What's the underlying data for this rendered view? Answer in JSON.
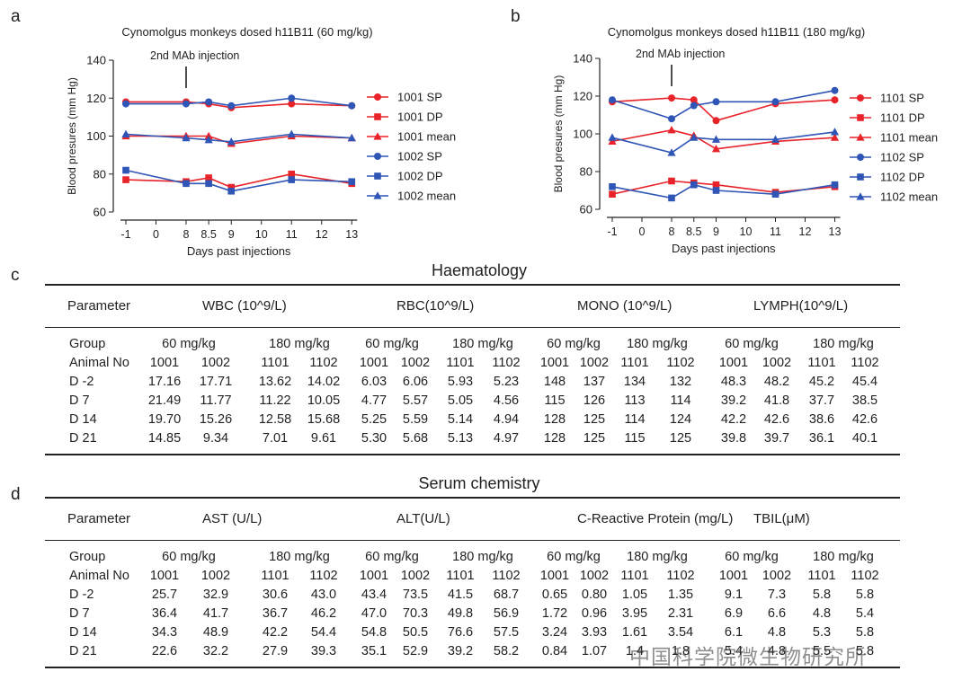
{
  "panels": {
    "a": "a",
    "b": "b",
    "c": "c",
    "d": "d"
  },
  "chart_data": [
    {
      "type": "line",
      "title": "Cynomolgus monkeys dosed h11B11 (60 mg/kg)",
      "xlabel": "Days past injections",
      "ylabel": "Blood presures (mm Hg)",
      "ylim": [
        60,
        140
      ],
      "yticks": [
        "60",
        "80",
        "100",
        "120",
        "140"
      ],
      "xticks": [
        "-1",
        "0",
        "8",
        "8.5",
        "9",
        "10",
        "11",
        "12",
        "13"
      ],
      "xtick_values": [
        -1,
        0,
        8,
        8.5,
        9,
        10,
        11,
        12,
        13
      ],
      "annotation": "2nd MAb injection",
      "legend_position": "right",
      "x": [
        -1,
        8,
        8.5,
        9,
        11,
        13
      ],
      "series": [
        {
          "name": "1001 SP",
          "color": "#e8232a",
          "marker": "circle",
          "values": [
            118,
            118,
            117,
            115,
            117,
            116
          ]
        },
        {
          "name": "1001 DP",
          "color": "#e8232a",
          "marker": "square",
          "values": [
            77,
            76,
            78,
            73,
            80,
            75
          ]
        },
        {
          "name": "1001 mean",
          "color": "#e8232a",
          "marker": "triangle",
          "values": [
            100,
            100,
            100,
            96,
            100,
            99
          ]
        },
        {
          "name": "1002 SP",
          "color": "#2f55b6",
          "marker": "circle",
          "values": [
            117,
            117,
            118,
            116,
            120,
            116
          ]
        },
        {
          "name": "1002 DP",
          "color": "#2f55b6",
          "marker": "square",
          "values": [
            82,
            75,
            75,
            71,
            77,
            76
          ]
        },
        {
          "name": "1002 mean",
          "color": "#2f55b6",
          "marker": "triangle",
          "values": [
            101,
            99,
            98,
            97,
            101,
            99
          ]
        }
      ]
    },
    {
      "type": "line",
      "title": "Cynomolgus monkeys dosed h11B11 (180 mg/kg)",
      "xlabel": "Days past injections",
      "ylabel": "Blood presures (mm Hg)",
      "ylim": [
        60,
        140
      ],
      "yticks": [
        "60",
        "80",
        "100",
        "120",
        "140"
      ],
      "xticks": [
        "-1",
        "0",
        "8",
        "8.5",
        "9",
        "10",
        "11",
        "12",
        "13"
      ],
      "xtick_values": [
        -1,
        0,
        8,
        8.5,
        9,
        10,
        11,
        12,
        13
      ],
      "annotation": "2nd MAb injection",
      "legend_position": "right",
      "x": [
        -1,
        8,
        8.5,
        9,
        11,
        13
      ],
      "series": [
        {
          "name": "1101 SP",
          "color": "#e8232a",
          "marker": "circle",
          "values": [
            117,
            119,
            118,
            107,
            116,
            118
          ]
        },
        {
          "name": "1101 DP",
          "color": "#e8232a",
          "marker": "square",
          "values": [
            68,
            75,
            74,
            73,
            69,
            72
          ]
        },
        {
          "name": "1101 mean",
          "color": "#e8232a",
          "marker": "triangle",
          "values": [
            96,
            102,
            99,
            92,
            96,
            98
          ]
        },
        {
          "name": "1102 SP",
          "color": "#2f55b6",
          "marker": "circle",
          "values": [
            118,
            108,
            115,
            117,
            117,
            123
          ]
        },
        {
          "name": "1102 DP",
          "color": "#2f55b6",
          "marker": "square",
          "values": [
            72,
            66,
            73,
            70,
            68,
            73
          ]
        },
        {
          "name": "1102 mean",
          "color": "#2f55b6",
          "marker": "triangle",
          "values": [
            98,
            90,
            98,
            97,
            97,
            101
          ]
        }
      ]
    }
  ],
  "tables": [
    {
      "title": "Haematology",
      "param_label": "Parameter",
      "params": [
        "WBC (10^9/L)",
        "RBC(10^9/L)",
        "MONO (10^9/L)",
        "LYMPH(10^9/L)"
      ],
      "group_label": "Group",
      "groups": [
        "60 mg/kg",
        "180 mg/kg"
      ],
      "animal_label": "Animal No",
      "animals": [
        "1001",
        "1002",
        "1101",
        "1102"
      ],
      "rows": [
        {
          "label": "D -2",
          "values": [
            "17.16",
            "17.71",
            "13.62",
            "14.02",
            "6.03",
            "6.06",
            "5.93",
            "5.23",
            "148",
            "137",
            "134",
            "132",
            "48.3",
            "48.2",
            "45.2",
            "45.4"
          ]
        },
        {
          "label": "D  7",
          "values": [
            "21.49",
            "11.77",
            "11.22",
            "10.05",
            "4.77",
            "5.57",
            "5.05",
            "4.56",
            "115",
            "126",
            "113",
            "114",
            "39.2",
            "41.8",
            "37.7",
            "38.5"
          ]
        },
        {
          "label": "D 14",
          "values": [
            "19.70",
            "15.26",
            "12.58",
            "15.68",
            "5.25",
            "5.59",
            "5.14",
            "4.94",
            "128",
            "125",
            "114",
            "124",
            "42.2",
            "42.6",
            "38.6",
            "42.6"
          ]
        },
        {
          "label": "D 21",
          "values": [
            "14.85",
            "9.34",
            "7.01",
            "9.61",
            "5.30",
            "5.68",
            "5.13",
            "4.97",
            "128",
            "125",
            "115",
            "125",
            "39.8",
            "39.7",
            "36.1",
            "40.1"
          ]
        }
      ]
    },
    {
      "title": "Serum chemistry",
      "param_label": "Parameter",
      "params": [
        "AST (U/L)",
        "ALT(U/L)",
        "C-Reactive Protein (mg/L)",
        "TBIL(μM)"
      ],
      "group_label": "Group",
      "groups": [
        "60 mg/kg",
        "180 mg/kg"
      ],
      "animal_label": "Animal No",
      "animals": [
        "1001",
        "1002",
        "1101",
        "1102"
      ],
      "rows": [
        {
          "label": "D -2",
          "values": [
            "25.7",
            "32.9",
            "30.6",
            "43.0",
            "43.4",
            "73.5",
            "41.5",
            "68.7",
            "0.65",
            "0.80",
            "1.05",
            "1.35",
            "9.1",
            "7.3",
            "5.8",
            "5.8"
          ]
        },
        {
          "label": "D  7",
          "values": [
            "36.4",
            "41.7",
            "36.7",
            "46.2",
            "47.0",
            "70.3",
            "49.8",
            "56.9",
            "1.72",
            "0.96",
            "3.95",
            "2.31",
            "6.9",
            "6.6",
            "4.8",
            "5.4"
          ]
        },
        {
          "label": "D 14",
          "values": [
            "34.3",
            "48.9",
            "42.2",
            "54.4",
            "54.8",
            "50.5",
            "76.6",
            "57.5",
            "3.24",
            "3.93",
            "1.61",
            "3.54",
            "6.1",
            "4.8",
            "5.3",
            "5.8"
          ]
        },
        {
          "label": "D 21",
          "values": [
            "22.6",
            "32.2",
            "27.9",
            "39.3",
            "35.1",
            "52.9",
            "39.2",
            "58.2",
            "0.84",
            "1.07",
            "1.4",
            "1.8",
            "5.4",
            "4.8",
            "5.5",
            "5.8"
          ]
        }
      ]
    }
  ],
  "watermark": "中国科学院微生物研究所"
}
